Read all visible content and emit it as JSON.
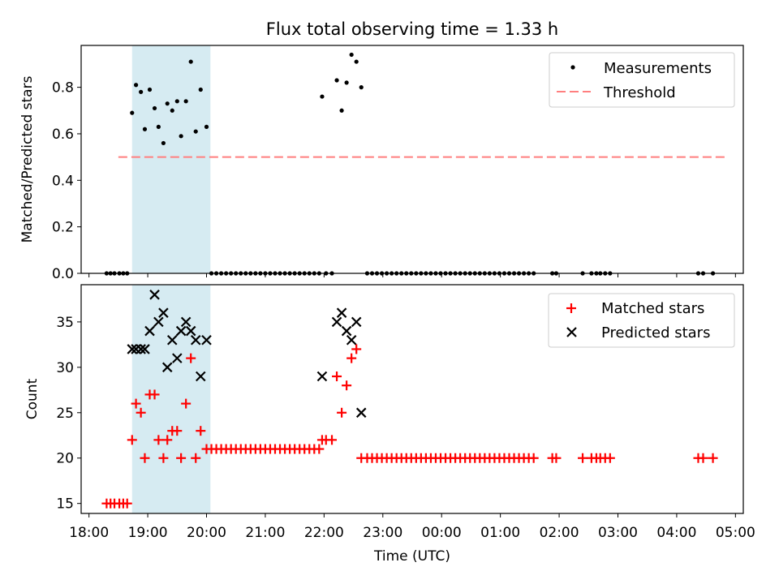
{
  "chart_data": [
    {
      "type": "scatter",
      "title": "Flux total observing time = 1.33 h",
      "ylabel": "Matched/Predicted stars",
      "xlabel": "",
      "ylim": [
        0,
        0.98
      ],
      "xlim": [
        "17:52",
        "05:08"
      ],
      "yticks": [
        0.0,
        0.2,
        0.4,
        0.6,
        0.8
      ],
      "ytick_labels": [
        "0.0",
        "0.2",
        "0.4",
        "0.6",
        "0.8"
      ],
      "legend_position": "top-right",
      "highlight_band": {
        "x": [
          "18:44",
          "20:04"
        ],
        "color": "#add8e6"
      },
      "threshold": {
        "name": "Threshold",
        "y": 0.5,
        "x": [
          "18:30",
          "04:50"
        ],
        "color": "#ff7f7f",
        "style": "dashed"
      },
      "series": [
        {
          "name": "Measurements",
          "marker": "dot",
          "color": "#000000",
          "points": [
            [
              "18:18",
              0
            ],
            [
              "18:22",
              0
            ],
            [
              "18:26",
              0
            ],
            [
              "18:31",
              0
            ],
            [
              "18:35",
              0
            ],
            [
              "18:39",
              0
            ],
            [
              "18:44",
              0.69
            ],
            [
              "18:48",
              0.81
            ],
            [
              "18:53",
              0.78
            ],
            [
              "18:57",
              0.62
            ],
            [
              "19:02",
              0.79
            ],
            [
              "19:07",
              0.71
            ],
            [
              "19:11",
              0.63
            ],
            [
              "19:16",
              0.56
            ],
            [
              "19:20",
              0.73
            ],
            [
              "19:25",
              0.7
            ],
            [
              "19:30",
              0.74
            ],
            [
              "19:34",
              0.59
            ],
            [
              "19:39",
              0.74
            ],
            [
              "19:44",
              0.91
            ],
            [
              "19:49",
              0.61
            ],
            [
              "19:54",
              0.79
            ],
            [
              "20:00",
              0.63
            ],
            [
              "20:05",
              0
            ],
            [
              "20:10",
              0
            ],
            [
              "20:15",
              0
            ],
            [
              "20:20",
              0
            ],
            [
              "20:25",
              0
            ],
            [
              "20:30",
              0
            ],
            [
              "20:35",
              0
            ],
            [
              "20:40",
              0
            ],
            [
              "20:45",
              0
            ],
            [
              "20:50",
              0
            ],
            [
              "20:55",
              0
            ],
            [
              "21:00",
              0
            ],
            [
              "21:05",
              0
            ],
            [
              "21:10",
              0
            ],
            [
              "21:15",
              0
            ],
            [
              "21:20",
              0
            ],
            [
              "21:25",
              0
            ],
            [
              "21:30",
              0
            ],
            [
              "21:35",
              0
            ],
            [
              "21:40",
              0
            ],
            [
              "21:45",
              0
            ],
            [
              "21:50",
              0
            ],
            [
              "21:55",
              0
            ],
            [
              "21:58",
              0.76
            ],
            [
              "22:02",
              0
            ],
            [
              "22:08",
              0
            ],
            [
              "22:13",
              0.83
            ],
            [
              "22:18",
              0.7
            ],
            [
              "22:23",
              0.82
            ],
            [
              "22:28",
              0.94
            ],
            [
              "22:33",
              0.91
            ],
            [
              "22:38",
              0.8
            ],
            [
              "22:44",
              0
            ],
            [
              "22:49",
              0
            ],
            [
              "22:54",
              0
            ],
            [
              "22:59",
              0
            ],
            [
              "23:04",
              0
            ],
            [
              "23:09",
              0
            ],
            [
              "23:14",
              0
            ],
            [
              "23:19",
              0
            ],
            [
              "23:24",
              0
            ],
            [
              "23:29",
              0
            ],
            [
              "23:34",
              0
            ],
            [
              "23:39",
              0
            ],
            [
              "23:44",
              0
            ],
            [
              "23:49",
              0
            ],
            [
              "23:54",
              0
            ],
            [
              "23:59",
              0
            ],
            [
              "00:04",
              0
            ],
            [
              "00:09",
              0
            ],
            [
              "00:14",
              0
            ],
            [
              "00:19",
              0
            ],
            [
              "00:24",
              0
            ],
            [
              "00:29",
              0
            ],
            [
              "00:34",
              0
            ],
            [
              "00:39",
              0
            ],
            [
              "00:44",
              0
            ],
            [
              "00:49",
              0
            ],
            [
              "00:54",
              0
            ],
            [
              "00:59",
              0
            ],
            [
              "01:04",
              0
            ],
            [
              "01:09",
              0
            ],
            [
              "01:14",
              0
            ],
            [
              "01:19",
              0
            ],
            [
              "01:24",
              0
            ],
            [
              "01:29",
              0
            ],
            [
              "01:34",
              0
            ],
            [
              "01:53",
              0
            ],
            [
              "01:57",
              0
            ],
            [
              "02:24",
              0
            ],
            [
              "02:33",
              0
            ],
            [
              "02:38",
              0
            ],
            [
              "02:42",
              0
            ],
            [
              "02:47",
              0
            ],
            [
              "02:52",
              0
            ],
            [
              "04:22",
              0
            ],
            [
              "04:27",
              0
            ],
            [
              "04:37",
              0
            ]
          ]
        }
      ]
    },
    {
      "type": "scatter",
      "title": "",
      "ylabel": "Count",
      "xlabel": "Time (UTC)",
      "ylim": [
        13.9,
        39.1
      ],
      "xlim": [
        "17:52",
        "05:08"
      ],
      "yticks": [
        15,
        20,
        25,
        30,
        35
      ],
      "ytick_labels": [
        "15",
        "20",
        "25",
        "30",
        "35"
      ],
      "xticks": [
        "18:00",
        "19:00",
        "20:00",
        "21:00",
        "22:00",
        "23:00",
        "00:00",
        "01:00",
        "02:00",
        "03:00",
        "04:00",
        "05:00"
      ],
      "xtick_labels": [
        "18:00",
        "19:00",
        "20:00",
        "21:00",
        "22:00",
        "23:00",
        "00:00",
        "01:00",
        "02:00",
        "03:00",
        "04:00",
        "05:00"
      ],
      "legend_position": "top-right",
      "highlight_band": {
        "x": [
          "18:44",
          "20:04"
        ],
        "color": "#add8e6"
      },
      "series": [
        {
          "name": "Matched stars",
          "marker": "plus",
          "color": "#ff0000",
          "points": [
            [
              "18:18",
              15
            ],
            [
              "18:22",
              15
            ],
            [
              "18:26",
              15
            ],
            [
              "18:31",
              15
            ],
            [
              "18:35",
              15
            ],
            [
              "18:39",
              15
            ],
            [
              "18:44",
              22
            ],
            [
              "18:48",
              26
            ],
            [
              "18:53",
              25
            ],
            [
              "18:57",
              20
            ],
            [
              "19:02",
              27
            ],
            [
              "19:07",
              27
            ],
            [
              "19:11",
              22
            ],
            [
              "19:16",
              20
            ],
            [
              "19:20",
              22
            ],
            [
              "19:25",
              23
            ],
            [
              "19:30",
              23
            ],
            [
              "19:34",
              20
            ],
            [
              "19:39",
              26
            ],
            [
              "19:44",
              31
            ],
            [
              "19:49",
              20
            ],
            [
              "19:54",
              23
            ],
            [
              "20:00",
              21
            ],
            [
              "20:05",
              21
            ],
            [
              "20:10",
              21
            ],
            [
              "20:15",
              21
            ],
            [
              "20:20",
              21
            ],
            [
              "20:25",
              21
            ],
            [
              "20:30",
              21
            ],
            [
              "20:35",
              21
            ],
            [
              "20:40",
              21
            ],
            [
              "20:45",
              21
            ],
            [
              "20:50",
              21
            ],
            [
              "20:55",
              21
            ],
            [
              "21:00",
              21
            ],
            [
              "21:05",
              21
            ],
            [
              "21:10",
              21
            ],
            [
              "21:15",
              21
            ],
            [
              "21:20",
              21
            ],
            [
              "21:25",
              21
            ],
            [
              "21:30",
              21
            ],
            [
              "21:35",
              21
            ],
            [
              "21:40",
              21
            ],
            [
              "21:45",
              21
            ],
            [
              "21:50",
              21
            ],
            [
              "21:55",
              21
            ],
            [
              "21:58",
              22
            ],
            [
              "22:02",
              22
            ],
            [
              "22:08",
              22
            ],
            [
              "22:13",
              29
            ],
            [
              "22:18",
              25
            ],
            [
              "22:23",
              28
            ],
            [
              "22:28",
              31
            ],
            [
              "22:33",
              32
            ],
            [
              "22:38",
              20
            ],
            [
              "22:44",
              20
            ],
            [
              "22:49",
              20
            ],
            [
              "22:54",
              20
            ],
            [
              "22:59",
              20
            ],
            [
              "23:04",
              20
            ],
            [
              "23:09",
              20
            ],
            [
              "23:14",
              20
            ],
            [
              "23:19",
              20
            ],
            [
              "23:24",
              20
            ],
            [
              "23:29",
              20
            ],
            [
              "23:34",
              20
            ],
            [
              "23:39",
              20
            ],
            [
              "23:44",
              20
            ],
            [
              "23:49",
              20
            ],
            [
              "23:54",
              20
            ],
            [
              "23:59",
              20
            ],
            [
              "00:04",
              20
            ],
            [
              "00:09",
              20
            ],
            [
              "00:14",
              20
            ],
            [
              "00:19",
              20
            ],
            [
              "00:24",
              20
            ],
            [
              "00:29",
              20
            ],
            [
              "00:34",
              20
            ],
            [
              "00:39",
              20
            ],
            [
              "00:44",
              20
            ],
            [
              "00:49",
              20
            ],
            [
              "00:54",
              20
            ],
            [
              "00:59",
              20
            ],
            [
              "01:04",
              20
            ],
            [
              "01:09",
              20
            ],
            [
              "01:14",
              20
            ],
            [
              "01:19",
              20
            ],
            [
              "01:24",
              20
            ],
            [
              "01:29",
              20
            ],
            [
              "01:34",
              20
            ],
            [
              "01:53",
              20
            ],
            [
              "01:57",
              20
            ],
            [
              "02:24",
              20
            ],
            [
              "02:33",
              20
            ],
            [
              "02:38",
              20
            ],
            [
              "02:42",
              20
            ],
            [
              "02:47",
              20
            ],
            [
              "02:52",
              20
            ],
            [
              "04:22",
              20
            ],
            [
              "04:27",
              20
            ],
            [
              "04:37",
              20
            ]
          ]
        },
        {
          "name": "Predicted stars",
          "marker": "x",
          "color": "#000000",
          "points": [
            [
              "18:44",
              32
            ],
            [
              "18:48",
              32
            ],
            [
              "18:53",
              32
            ],
            [
              "18:57",
              32
            ],
            [
              "19:02",
              34
            ],
            [
              "19:07",
              38
            ],
            [
              "19:11",
              35
            ],
            [
              "19:16",
              36
            ],
            [
              "19:20",
              30
            ],
            [
              "19:25",
              33
            ],
            [
              "19:30",
              31
            ],
            [
              "19:34",
              34
            ],
            [
              "19:39",
              35
            ],
            [
              "19:44",
              34
            ],
            [
              "19:49",
              33
            ],
            [
              "19:54",
              29
            ],
            [
              "20:00",
              33
            ],
            [
              "21:58",
              29
            ],
            [
              "22:13",
              35
            ],
            [
              "22:18",
              36
            ],
            [
              "22:23",
              34
            ],
            [
              "22:28",
              33
            ],
            [
              "22:33",
              35
            ],
            [
              "22:38",
              25
            ]
          ]
        }
      ]
    }
  ]
}
